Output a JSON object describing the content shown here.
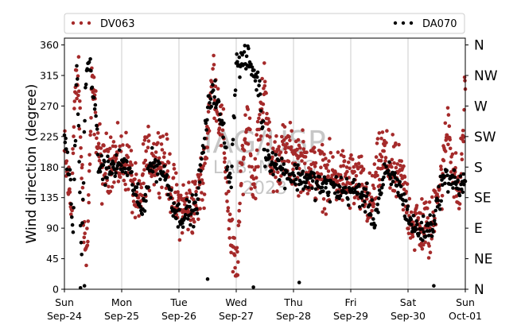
{
  "chart_data": {
    "type": "scatter",
    "ylabel": "Wind direction (degree)",
    "ylim": [
      0,
      370
    ],
    "xlim": [
      "2023-09-24",
      "2023-10-01"
    ],
    "yticks": [
      0,
      45,
      90,
      135,
      180,
      225,
      270,
      315,
      360
    ],
    "xticks": [
      {
        "top": "Sun",
        "bottom": "Sep-24"
      },
      {
        "top": "Mon",
        "bottom": "Sep-25"
      },
      {
        "top": "Tue",
        "bottom": "Sep-26"
      },
      {
        "top": "Wed",
        "bottom": "Sep-27"
      },
      {
        "top": "Thu",
        "bottom": "Sep-28"
      },
      {
        "top": "Fri",
        "bottom": "Sep-29"
      },
      {
        "top": "Sat",
        "bottom": "Sep-30"
      },
      {
        "top": "Sun",
        "bottom": "Oct-01"
      }
    ],
    "compass_labels": [
      "N",
      "NE",
      "E",
      "SE",
      "S",
      "SW",
      "W",
      "NW",
      "N"
    ],
    "grid": "vertical at day boundaries",
    "legend_position": "top, above plot",
    "watermark": {
      "line1": "IAG/USP",
      "line2": "LAB. MICRO",
      "line3": "2023"
    },
    "series": [
      {
        "name": "DV063",
        "color": "#a52a2a",
        "note": "approximate trend (day, direction); points scattered around it",
        "trend": [
          [
            0.0,
            200
          ],
          [
            0.06,
            160
          ],
          [
            0.12,
            120
          ],
          [
            0.18,
            280
          ],
          [
            0.24,
            310
          ],
          [
            0.28,
            230
          ],
          [
            0.33,
            120
          ],
          [
            0.38,
            40
          ],
          [
            0.42,
            120
          ],
          [
            0.48,
            300
          ],
          [
            0.55,
            250
          ],
          [
            0.65,
            170
          ],
          [
            0.8,
            195
          ],
          [
            0.95,
            185
          ],
          [
            1.1,
            190
          ],
          [
            1.2,
            150
          ],
          [
            1.3,
            110
          ],
          [
            1.4,
            190
          ],
          [
            1.55,
            190
          ],
          [
            1.7,
            200
          ],
          [
            1.85,
            160
          ],
          [
            1.95,
            125
          ],
          [
            2.1,
            120
          ],
          [
            2.3,
            125
          ],
          [
            2.45,
            180
          ],
          [
            2.52,
            260
          ],
          [
            2.6,
            315
          ],
          [
            2.7,
            260
          ],
          [
            2.8,
            200
          ],
          [
            2.9,
            80
          ],
          [
            3.0,
            20
          ],
          [
            3.1,
            180
          ],
          [
            3.2,
            260
          ],
          [
            3.3,
            150
          ],
          [
            3.4,
            230
          ],
          [
            3.5,
            310
          ],
          [
            3.6,
            180
          ],
          [
            3.8,
            200
          ],
          [
            4.0,
            195
          ],
          [
            4.2,
            185
          ],
          [
            4.4,
            170
          ],
          [
            4.6,
            165
          ],
          [
            4.8,
            165
          ],
          [
            5.0,
            160
          ],
          [
            5.2,
            150
          ],
          [
            5.35,
            120
          ],
          [
            5.45,
            165
          ],
          [
            5.55,
            200
          ],
          [
            5.7,
            175
          ],
          [
            5.9,
            160
          ],
          [
            6.0,
            120
          ],
          [
            6.1,
            95
          ],
          [
            6.3,
            95
          ],
          [
            6.4,
            80
          ],
          [
            6.5,
            150
          ],
          [
            6.6,
            160
          ],
          [
            6.7,
            250
          ],
          [
            6.8,
            165
          ],
          [
            6.9,
            140
          ],
          [
            7.0,
            290
          ]
        ]
      },
      {
        "name": "DA070",
        "color": "#000000",
        "note": "approximate trend (day, direction); points scattered around it",
        "trend": [
          [
            0.0,
            230
          ],
          [
            0.05,
            190
          ],
          [
            0.1,
            160
          ],
          [
            0.15,
            80
          ],
          [
            0.22,
            340
          ],
          [
            0.3,
            30
          ],
          [
            0.36,
            280
          ],
          [
            0.42,
            340
          ],
          [
            0.5,
            300
          ],
          [
            0.6,
            180
          ],
          [
            0.8,
            175
          ],
          [
            0.95,
            185
          ],
          [
            1.1,
            180
          ],
          [
            1.25,
            140
          ],
          [
            1.35,
            110
          ],
          [
            1.5,
            185
          ],
          [
            1.65,
            180
          ],
          [
            1.8,
            160
          ],
          [
            1.95,
            110
          ],
          [
            2.1,
            110
          ],
          [
            2.3,
            120
          ],
          [
            2.5,
            260
          ],
          [
            2.6,
            300
          ],
          [
            2.8,
            220
          ],
          [
            2.9,
            150
          ],
          [
            3.0,
            330
          ],
          [
            3.2,
            340
          ],
          [
            3.4,
            300
          ],
          [
            3.5,
            200
          ],
          [
            3.7,
            185
          ],
          [
            3.9,
            170
          ],
          [
            4.1,
            165
          ],
          [
            4.3,
            160
          ],
          [
            4.5,
            150
          ],
          [
            4.7,
            150
          ],
          [
            4.9,
            145
          ],
          [
            5.1,
            145
          ],
          [
            5.3,
            130
          ],
          [
            5.4,
            100
          ],
          [
            5.6,
            170
          ],
          [
            5.8,
            160
          ],
          [
            6.0,
            110
          ],
          [
            6.1,
            90
          ],
          [
            6.3,
            85
          ],
          [
            6.45,
            100
          ],
          [
            6.6,
            160
          ],
          [
            6.75,
            165
          ],
          [
            6.9,
            150
          ],
          [
            7.0,
            160
          ]
        ],
        "outliers": [
          [
            0.28,
            2
          ],
          [
            0.35,
            5
          ],
          [
            2.5,
            15
          ],
          [
            3.3,
            3
          ],
          [
            4.1,
            10
          ],
          [
            6.45,
            5
          ]
        ]
      }
    ]
  }
}
